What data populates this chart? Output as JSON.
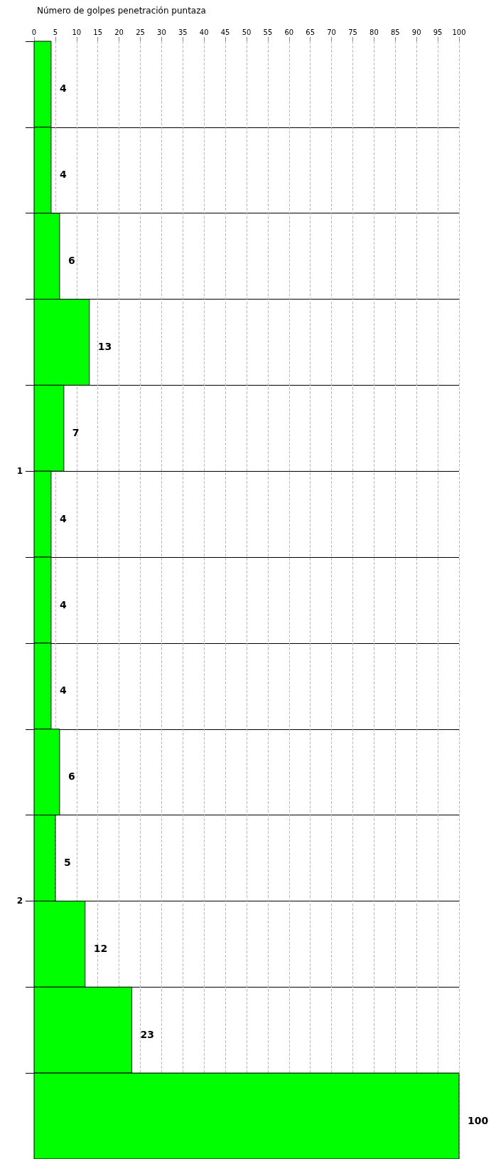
{
  "chart_data": {
    "type": "bar",
    "orientation": "horizontal",
    "xlabel": "Número de golpes penetración puntaza",
    "x": [
      0.1,
      0.3,
      0.5,
      0.7,
      0.9,
      1.1,
      1.3,
      1.5,
      1.7,
      1.9,
      2.1,
      2.3,
      2.5
    ],
    "values": [
      4,
      4,
      6,
      13,
      7,
      4,
      4,
      4,
      6,
      5,
      12,
      23,
      100
    ],
    "color": "#00ff00",
    "xlim": [
      0,
      100
    ],
    "xticks": [
      0,
      5,
      10,
      15,
      20,
      25,
      30,
      35,
      40,
      45,
      50,
      55,
      60,
      65,
      70,
      75,
      80,
      85,
      90,
      95,
      100
    ],
    "ylim": [
      2.6,
      0
    ],
    "yticks": [
      {
        "value": 0,
        "label": null
      },
      {
        "value": 0.2,
        "label": null
      },
      {
        "value": 0.4,
        "label": null
      },
      {
        "value": 0.6,
        "label": null
      },
      {
        "value": 0.8,
        "label": null
      },
      1,
      {
        "value": 1.2,
        "label": null
      },
      {
        "value": 1.4,
        "label": null
      },
      {
        "value": 1.6,
        "label": null
      },
      {
        "value": 1.8,
        "label": null
      },
      2,
      {
        "value": 2.2,
        "label": null
      },
      {
        "value": 2.4,
        "label": null
      }
    ],
    "grid": true,
    "data_labels": true
  }
}
